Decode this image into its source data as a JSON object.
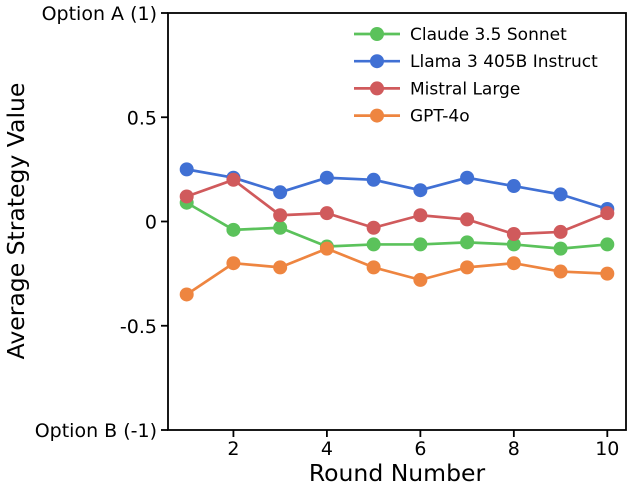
{
  "colors": {
    "background": "#ffffff",
    "axis": "#000000",
    "text": "#000000"
  },
  "chart_data": {
    "type": "line",
    "title": "",
    "xlabel": "Round Number",
    "ylabel": "Average Strategy Value",
    "xlim": [
      0.6,
      10.4
    ],
    "ylim": [
      -1,
      1
    ],
    "grid": false,
    "legend_position": "upper-right-inside-frameless",
    "x": [
      1,
      2,
      3,
      4,
      5,
      6,
      7,
      8,
      9,
      10
    ],
    "xticks": [
      {
        "value": 2,
        "label": "2"
      },
      {
        "value": 4,
        "label": "4"
      },
      {
        "value": 6,
        "label": "6"
      },
      {
        "value": 8,
        "label": "8"
      },
      {
        "value": 10,
        "label": "10"
      }
    ],
    "yticks": [
      {
        "value": 1,
        "label": "Option A (1)"
      },
      {
        "value": 0.5,
        "label": "0.5"
      },
      {
        "value": 0,
        "label": "0"
      },
      {
        "value": -0.5,
        "label": "-0.5"
      },
      {
        "value": -1,
        "label": "Option B (-1)"
      }
    ],
    "series": [
      {
        "name": "Claude 3.5 Sonnet",
        "color": "#5BC25B",
        "values": [
          0.09,
          -0.04,
          -0.03,
          -0.12,
          -0.11,
          -0.11,
          -0.1,
          -0.11,
          -0.13,
          -0.11
        ]
      },
      {
        "name": "Llama 3 405B Instruct",
        "color": "#4070D4",
        "values": [
          0.25,
          0.21,
          0.14,
          0.21,
          0.2,
          0.15,
          0.21,
          0.17,
          0.13,
          0.06
        ]
      },
      {
        "name": "Mistral Large",
        "color": "#D05A5C",
        "values": [
          0.12,
          0.2,
          0.03,
          0.04,
          -0.03,
          0.03,
          0.01,
          -0.06,
          -0.05,
          0.04
        ]
      },
      {
        "name": "GPT-4o",
        "color": "#EE8540",
        "values": [
          -0.35,
          -0.2,
          -0.22,
          -0.13,
          -0.22,
          -0.28,
          -0.22,
          -0.2,
          -0.24,
          -0.25
        ]
      }
    ]
  }
}
